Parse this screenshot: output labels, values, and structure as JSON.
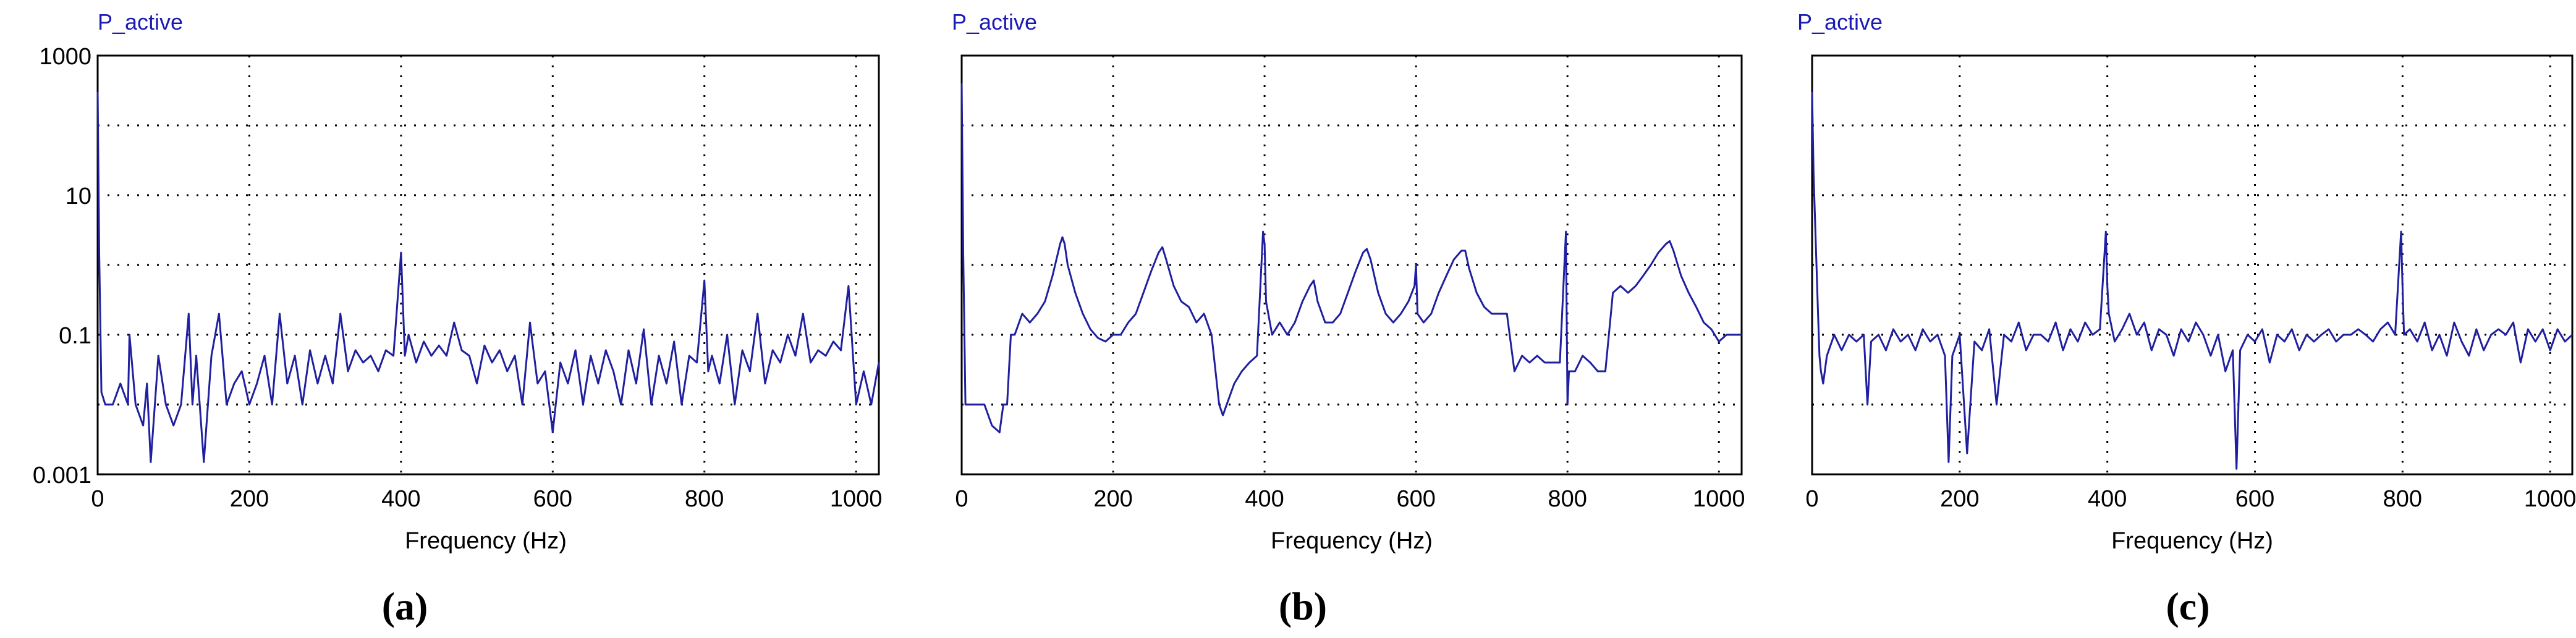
{
  "chart_data": [
    {
      "type": "line",
      "title": "P_active",
      "xlabel": "Frequency (Hz)",
      "ylabel": "",
      "caption": "(a)",
      "xlim": [
        0,
        1030
      ],
      "ylim": [
        0.001,
        1000
      ],
      "yscale": "log",
      "xticks": [
        0,
        200,
        400,
        600,
        800,
        1000
      ],
      "xtick_labels": [
        "0",
        "200",
        "400",
        "600",
        "800",
        "1000"
      ],
      "yticks": [
        0.001,
        0.1,
        10,
        1000
      ],
      "ytick_labels": [
        "0.001",
        "0.1",
        "10",
        "1000"
      ],
      "grid": true,
      "series": [
        {
          "color": "#1f1fa0",
          "x": [
            0,
            2,
            5,
            10,
            20,
            30,
            40,
            42,
            50,
            60,
            65,
            70,
            80,
            90,
            100,
            110,
            120,
            125,
            130,
            140,
            150,
            160,
            170,
            180,
            190,
            200,
            210,
            220,
            230,
            240,
            250,
            260,
            270,
            280,
            290,
            300,
            310,
            320,
            330,
            340,
            350,
            360,
            370,
            380,
            390,
            400,
            405,
            410,
            420,
            430,
            440,
            450,
            460,
            470,
            480,
            490,
            500,
            510,
            520,
            530,
            540,
            550,
            560,
            570,
            580,
            590,
            600,
            610,
            620,
            630,
            640,
            650,
            660,
            670,
            680,
            690,
            700,
            710,
            720,
            730,
            740,
            750,
            760,
            770,
            780,
            790,
            800,
            805,
            810,
            820,
            830,
            840,
            850,
            860,
            870,
            880,
            890,
            900,
            910,
            920,
            930,
            940,
            950,
            960,
            970,
            980,
            990,
            1000,
            1010,
            1020,
            1030
          ],
          "y": [
            300,
            1.5,
            0.015,
            0.01,
            0.01,
            0.02,
            0.01,
            0.1,
            0.01,
            0.005,
            0.02,
            0.0015,
            0.05,
            0.01,
            0.005,
            0.01,
            0.2,
            0.01,
            0.05,
            0.0015,
            0.05,
            0.2,
            0.01,
            0.02,
            0.03,
            0.01,
            0.02,
            0.05,
            0.01,
            0.2,
            0.02,
            0.05,
            0.01,
            0.06,
            0.02,
            0.05,
            0.02,
            0.2,
            0.03,
            0.06,
            0.04,
            0.05,
            0.03,
            0.06,
            0.05,
            1.5,
            0.05,
            0.1,
            0.04,
            0.08,
            0.05,
            0.07,
            0.05,
            0.15,
            0.06,
            0.05,
            0.02,
            0.07,
            0.04,
            0.06,
            0.03,
            0.05,
            0.01,
            0.15,
            0.02,
            0.03,
            0.004,
            0.04,
            0.02,
            0.06,
            0.01,
            0.05,
            0.02,
            0.06,
            0.03,
            0.01,
            0.06,
            0.02,
            0.12,
            0.01,
            0.05,
            0.02,
            0.08,
            0.01,
            0.05,
            0.04,
            0.6,
            0.03,
            0.05,
            0.02,
            0.1,
            0.01,
            0.06,
            0.03,
            0.2,
            0.02,
            0.06,
            0.04,
            0.1,
            0.05,
            0.2,
            0.04,
            0.06,
            0.05,
            0.08,
            0.06,
            0.5,
            0.01,
            0.03,
            0.01,
            0.04
          ]
        }
      ]
    },
    {
      "type": "line",
      "title": "P_active",
      "xlabel": "Frequency (Hz)",
      "ylabel": "",
      "caption": "(b)",
      "xlim": [
        0,
        1030
      ],
      "ylim": [
        0.001,
        1000
      ],
      "yscale": "log",
      "xticks": [
        0,
        200,
        400,
        600,
        800,
        1000
      ],
      "xtick_labels": [
        "0",
        "200",
        "400",
        "600",
        "800",
        "1000"
      ],
      "grid": true,
      "series": [
        {
          "color": "#1f1fa0",
          "x": [
            0,
            2,
            5,
            10,
            20,
            30,
            40,
            50,
            55,
            60,
            65,
            70,
            80,
            90,
            100,
            110,
            120,
            130,
            133,
            136,
            140,
            150,
            160,
            170,
            180,
            190,
            200,
            210,
            220,
            230,
            240,
            250,
            260,
            265,
            270,
            280,
            290,
            300,
            310,
            320,
            330,
            340,
            345,
            350,
            360,
            370,
            380,
            390,
            398,
            400,
            402,
            410,
            420,
            430,
            440,
            450,
            460,
            465,
            470,
            480,
            490,
            500,
            510,
            520,
            530,
            535,
            540,
            550,
            560,
            570,
            580,
            590,
            598,
            600,
            602,
            610,
            620,
            630,
            640,
            650,
            660,
            665,
            670,
            680,
            690,
            700,
            710,
            720,
            730,
            740,
            750,
            760,
            770,
            780,
            790,
            798,
            800,
            802,
            810,
            820,
            830,
            840,
            850,
            860,
            870,
            880,
            890,
            900,
            910,
            920,
            930,
            935,
            940,
            950,
            960,
            970,
            980,
            990,
            1000,
            1010,
            1020,
            1030
          ],
          "y": [
            400,
            1.5,
            0.01,
            0.01,
            0.01,
            0.01,
            0.005,
            0.004,
            0.01,
            0.01,
            0.1,
            0.1,
            0.2,
            0.15,
            0.2,
            0.3,
            0.7,
            2,
            2.5,
            2,
            1,
            0.4,
            0.2,
            0.12,
            0.09,
            0.08,
            0.1,
            0.1,
            0.15,
            0.2,
            0.4,
            0.8,
            1.5,
            1.8,
            1.2,
            0.5,
            0.3,
            0.25,
            0.15,
            0.2,
            0.1,
            0.01,
            0.007,
            0.01,
            0.02,
            0.03,
            0.04,
            0.05,
            3,
            2,
            0.3,
            0.1,
            0.15,
            0.1,
            0.15,
            0.3,
            0.5,
            0.6,
            0.3,
            0.15,
            0.15,
            0.2,
            0.4,
            0.8,
            1.5,
            1.7,
            1.2,
            0.4,
            0.2,
            0.15,
            0.2,
            0.3,
            0.5,
            1,
            0.2,
            0.15,
            0.2,
            0.4,
            0.7,
            1.2,
            1.6,
            1.6,
            0.9,
            0.4,
            0.25,
            0.2,
            0.2,
            0.2,
            0.03,
            0.05,
            0.04,
            0.05,
            0.04,
            0.04,
            0.04,
            3,
            0.01,
            0.03,
            0.03,
            0.05,
            0.04,
            0.03,
            0.03,
            0.4,
            0.5,
            0.4,
            0.5,
            0.7,
            1,
            1.5,
            2,
            2.2,
            1.6,
            0.7,
            0.4,
            0.25,
            0.15,
            0.12,
            0.08,
            0.1,
            0.1,
            0.1
          ]
        }
      ]
    },
    {
      "type": "line",
      "title": "P_active",
      "xlabel": "Frequency (Hz)",
      "ylabel": "",
      "caption": "(c)",
      "xlim": [
        0,
        1030
      ],
      "ylim": [
        0.001,
        1000
      ],
      "yscale": "log",
      "xticks": [
        0,
        200,
        400,
        600,
        800,
        1000
      ],
      "xtick_labels": [
        "0",
        "200",
        "400",
        "600",
        "800",
        "1000"
      ],
      "grid": true,
      "series": [
        {
          "color": "#1f1fa0",
          "x": [
            0,
            2,
            5,
            8,
            10,
            12,
            15,
            20,
            30,
            40,
            50,
            60,
            70,
            75,
            80,
            90,
            100,
            110,
            120,
            130,
            140,
            150,
            160,
            170,
            180,
            185,
            190,
            200,
            210,
            220,
            230,
            240,
            250,
            260,
            270,
            280,
            290,
            300,
            310,
            320,
            330,
            340,
            350,
            360,
            370,
            380,
            390,
            398,
            400,
            402,
            410,
            420,
            430,
            440,
            450,
            460,
            470,
            480,
            490,
            500,
            510,
            520,
            530,
            540,
            550,
            560,
            570,
            575,
            580,
            590,
            600,
            610,
            620,
            630,
            640,
            650,
            660,
            670,
            680,
            690,
            700,
            710,
            720,
            730,
            740,
            750,
            760,
            770,
            780,
            790,
            798,
            800,
            802,
            810,
            820,
            830,
            840,
            850,
            860,
            870,
            880,
            890,
            900,
            910,
            920,
            930,
            940,
            950,
            960,
            970,
            980,
            990,
            1000,
            1010,
            1020,
            1030
          ],
          "y": [
            300,
            20,
            2,
            0.2,
            0.05,
            0.03,
            0.02,
            0.05,
            0.1,
            0.06,
            0.1,
            0.08,
            0.1,
            0.01,
            0.08,
            0.1,
            0.06,
            0.12,
            0.08,
            0.1,
            0.06,
            0.12,
            0.08,
            0.1,
            0.05,
            0.0015,
            0.05,
            0.1,
            0.002,
            0.08,
            0.06,
            0.12,
            0.01,
            0.1,
            0.08,
            0.15,
            0.06,
            0.1,
            0.1,
            0.08,
            0.15,
            0.06,
            0.12,
            0.08,
            0.15,
            0.1,
            0.12,
            3,
            0.5,
            0.2,
            0.08,
            0.12,
            0.2,
            0.1,
            0.15,
            0.06,
            0.12,
            0.1,
            0.05,
            0.12,
            0.08,
            0.15,
            0.1,
            0.05,
            0.1,
            0.03,
            0.06,
            0.0012,
            0.06,
            0.1,
            0.08,
            0.12,
            0.04,
            0.1,
            0.08,
            0.12,
            0.06,
            0.1,
            0.08,
            0.1,
            0.12,
            0.08,
            0.1,
            0.1,
            0.12,
            0.1,
            0.08,
            0.12,
            0.15,
            0.1,
            3,
            0.5,
            0.1,
            0.12,
            0.08,
            0.15,
            0.06,
            0.1,
            0.05,
            0.15,
            0.08,
            0.05,
            0.12,
            0.06,
            0.1,
            0.12,
            0.1,
            0.15,
            0.04,
            0.12,
            0.08,
            0.12,
            0.06,
            0.12,
            0.08,
            0.1
          ]
        }
      ]
    }
  ]
}
